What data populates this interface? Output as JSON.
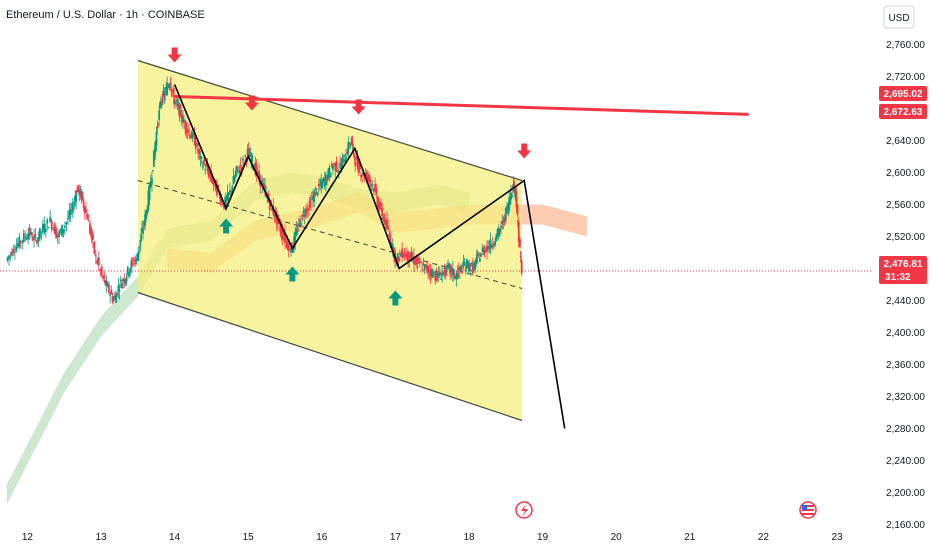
{
  "header": {
    "title": "Ethereum / U.S. Dollar · 1h · COINBASE",
    "currency": "USD"
  },
  "price_tags": {
    "resistance_1": "2,695.02",
    "resistance_2": "2,672.63",
    "last_price": "2,476.81",
    "countdown": "31:32"
  },
  "colors": {
    "channel_fill": "#f5ef7d",
    "bear_candle": "#f23645",
    "bull_candle": "#089981",
    "pattern_line": "#000000",
    "resistance_line": "#f23645",
    "cloud_bull": "#a5d6a7",
    "cloud_bear": "#f7a072"
  },
  "icons": {
    "top_markers": "arrow-down-red-icon",
    "bottom_markers": "arrow-up-green-icon",
    "event_flash": "flash-event-icon",
    "event_flag": "us-flag-event-icon"
  },
  "chart_data": {
    "type": "candlestick",
    "instrument": "Ethereum / U.S. Dollar",
    "timeframe": "1h",
    "exchange": "COINBASE",
    "x_ticks": [
      "12",
      "13",
      "14",
      "15",
      "16",
      "17",
      "18",
      "19",
      "20",
      "21",
      "22",
      "23"
    ],
    "y_ticks": [
      "2,760.00",
      "2,720.00",
      "2,680.00",
      "2,640.00",
      "2,600.00",
      "2,560.00",
      "2,520.00",
      "2,480.00",
      "2,440.00",
      "2,400.00",
      "2,360.00",
      "2,320.00",
      "2,280.00",
      "2,240.00",
      "2,200.00",
      "2,160.00"
    ],
    "y_values": [
      2760,
      2720,
      2680,
      2640,
      2600,
      2560,
      2520,
      2480,
      2440,
      2400,
      2360,
      2320,
      2280,
      2240,
      2200,
      2160
    ],
    "ylim": [
      2150,
      2780
    ],
    "xlim": [
      11.7,
      23.3
    ],
    "last_price": 2476.81,
    "resistance_levels": [
      2695.02,
      2672.63
    ],
    "series": [
      {
        "points": [
          [
            11.72,
            2490
          ],
          [
            11.82,
            2505
          ],
          [
            11.92,
            2515
          ],
          [
            12.02,
            2525
          ],
          [
            12.12,
            2515
          ],
          [
            12.22,
            2530
          ],
          [
            12.32,
            2540
          ],
          [
            12.42,
            2520
          ],
          [
            12.52,
            2535
          ],
          [
            12.62,
            2555
          ],
          [
            12.68,
            2580
          ],
          [
            12.74,
            2570
          ],
          [
            12.82,
            2545
          ],
          [
            12.92,
            2500
          ],
          [
            13.02,
            2470
          ],
          [
            13.1,
            2455
          ],
          [
            13.18,
            2440
          ],
          [
            13.26,
            2460
          ],
          [
            13.34,
            2470
          ],
          [
            13.42,
            2485
          ],
          [
            13.5,
            2495
          ],
          [
            13.55,
            2520
          ],
          [
            13.62,
            2550
          ],
          [
            13.7,
            2600
          ],
          [
            13.76,
            2650
          ],
          [
            13.82,
            2690
          ],
          [
            13.88,
            2700
          ],
          [
            13.94,
            2715
          ],
          [
            14.0,
            2690
          ],
          [
            14.06,
            2680
          ],
          [
            14.12,
            2665
          ],
          [
            14.2,
            2650
          ],
          [
            14.28,
            2640
          ],
          [
            14.36,
            2615
          ],
          [
            14.44,
            2605
          ],
          [
            14.52,
            2590
          ],
          [
            14.6,
            2575
          ],
          [
            14.68,
            2560
          ],
          [
            14.76,
            2575
          ],
          [
            14.84,
            2600
          ],
          [
            14.92,
            2610
          ],
          [
            15.0,
            2625
          ],
          [
            15.06,
            2615
          ],
          [
            15.14,
            2595
          ],
          [
            15.22,
            2580
          ],
          [
            15.3,
            2560
          ],
          [
            15.38,
            2545
          ],
          [
            15.46,
            2525
          ],
          [
            15.54,
            2510
          ],
          [
            15.6,
            2505
          ],
          [
            15.68,
            2530
          ],
          [
            15.76,
            2550
          ],
          [
            15.84,
            2560
          ],
          [
            15.92,
            2575
          ],
          [
            16.0,
            2585
          ],
          [
            16.08,
            2595
          ],
          [
            16.16,
            2610
          ],
          [
            16.24,
            2605
          ],
          [
            16.32,
            2620
          ],
          [
            16.4,
            2640
          ],
          [
            16.46,
            2615
          ],
          [
            16.54,
            2600
          ],
          [
            16.62,
            2595
          ],
          [
            16.7,
            2585
          ],
          [
            16.78,
            2560
          ],
          [
            16.86,
            2540
          ],
          [
            16.94,
            2515
          ],
          [
            17.02,
            2490
          ],
          [
            17.1,
            2500
          ],
          [
            17.18,
            2495
          ],
          [
            17.26,
            2490
          ],
          [
            17.34,
            2485
          ],
          [
            17.42,
            2480
          ],
          [
            17.5,
            2475
          ],
          [
            17.58,
            2470
          ],
          [
            17.66,
            2475
          ],
          [
            17.74,
            2480
          ],
          [
            17.82,
            2470
          ],
          [
            17.9,
            2480
          ],
          [
            17.98,
            2485
          ],
          [
            18.06,
            2480
          ],
          [
            18.14,
            2495
          ],
          [
            18.22,
            2505
          ],
          [
            18.3,
            2510
          ],
          [
            18.38,
            2520
          ],
          [
            18.46,
            2535
          ],
          [
            18.54,
            2560
          ],
          [
            18.6,
            2585
          ],
          [
            18.64,
            2575
          ],
          [
            18.68,
            2520
          ],
          [
            18.72,
            2476.81
          ]
        ]
      }
    ],
    "channel": {
      "upper": [
        [
          13.5,
          2740
        ],
        [
          18.72,
          2590
        ]
      ],
      "lower": [
        [
          13.5,
          2450
        ],
        [
          18.72,
          2290
        ]
      ],
      "mid_dashed": [
        [
          13.5,
          2590
        ],
        [
          18.72,
          2455
        ]
      ]
    },
    "pattern_path": [
      [
        14.0,
        2710
      ],
      [
        14.7,
        2555
      ],
      [
        15.0,
        2620
      ],
      [
        15.6,
        2505
      ],
      [
        16.45,
        2630
      ],
      [
        17.05,
        2480
      ],
      [
        18.75,
        2590
      ],
      [
        19.3,
        2280
      ]
    ],
    "resistance_line": [
      [
        14.0,
        2695.02
      ],
      [
        21.8,
        2672.63
      ]
    ],
    "down_markers": [
      [
        14.0,
        2745
      ],
      [
        15.05,
        2685
      ],
      [
        16.5,
        2680
      ],
      [
        18.75,
        2625
      ]
    ],
    "up_markers": [
      [
        14.7,
        2535
      ],
      [
        15.6,
        2475
      ],
      [
        17.0,
        2445
      ]
    ],
    "cloud_bull": [
      [
        11.72,
        2210
      ],
      [
        12.5,
        2350
      ],
      [
        13.0,
        2420
      ],
      [
        13.5,
        2470
      ],
      [
        13.9,
        2530
      ],
      [
        14.5,
        2540
      ],
      [
        15.1,
        2590
      ],
      [
        15.6,
        2600
      ],
      [
        16.0,
        2595
      ],
      [
        16.5,
        2580
      ],
      [
        17.0,
        2575
      ],
      [
        17.6,
        2585
      ],
      [
        18.0,
        2575
      ]
    ],
    "cloud_bear": [
      [
        13.9,
        2505
      ],
      [
        14.5,
        2500
      ],
      [
        15.1,
        2540
      ],
      [
        15.6,
        2550
      ],
      [
        16.0,
        2560
      ],
      [
        16.5,
        2575
      ],
      [
        17.0,
        2550
      ],
      [
        17.6,
        2555
      ],
      [
        18.0,
        2560
      ],
      [
        18.5,
        2560
      ],
      [
        19.0,
        2560
      ],
      [
        19.6,
        2545
      ]
    ]
  }
}
